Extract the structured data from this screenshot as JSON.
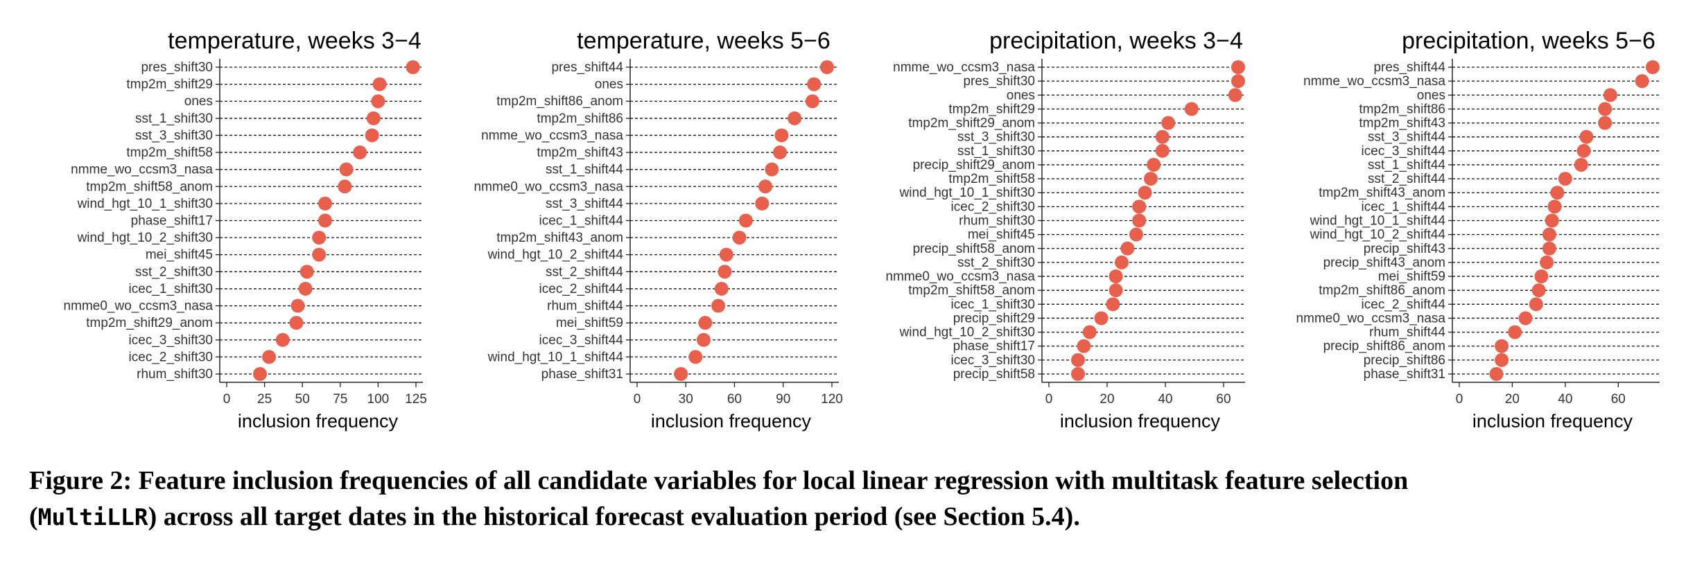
{
  "chart_data": [
    {
      "type": "dot",
      "title": "temperature, weeks 3−4",
      "xlabel": "inclusion frequency",
      "xlim": [
        0,
        125
      ],
      "xticks": [
        0,
        25,
        50,
        75,
        100,
        125
      ],
      "categories": [
        "pres_shift30",
        "tmp2m_shift29",
        "ones",
        "sst_1_shift30",
        "sst_3_shift30",
        "tmp2m_shift58",
        "nmme_wo_ccsm3_nasa",
        "tmp2m_shift58_anom",
        "wind_hgt_10_1_shift30",
        "phase_shift17",
        "wind_hgt_10_2_shift30",
        "mei_shift45",
        "sst_2_shift30",
        "icec_1_shift30",
        "nmme0_wo_ccsm3_nasa",
        "tmp2m_shift29_anom",
        "icec_3_shift30",
        "icec_2_shift30",
        "rhum_shift30"
      ],
      "values": [
        123,
        101,
        100,
        97,
        96,
        88,
        79,
        78,
        65,
        65,
        61,
        61,
        53,
        52,
        47,
        46,
        37,
        28,
        22
      ]
    },
    {
      "type": "dot",
      "title": "temperature, weeks 5−6",
      "xlabel": "inclusion frequency",
      "xlim": [
        0,
        120
      ],
      "xticks": [
        0,
        30,
        60,
        90,
        120
      ],
      "categories": [
        "pres_shift44",
        "ones",
        "tmp2m_shift86_anom",
        "tmp2m_shift86",
        "nmme_wo_ccsm3_nasa",
        "tmp2m_shift43",
        "sst_1_shift44",
        "nmme0_wo_ccsm3_nasa",
        "sst_3_shift44",
        "icec_1_shift44",
        "tmp2m_shift43_anom",
        "wind_hgt_10_2_shift44",
        "sst_2_shift44",
        "icec_2_shift44",
        "rhum_shift44",
        "mei_shift59",
        "icec_3_shift44",
        "wind_hgt_10_1_shift44",
        "phase_shift31"
      ],
      "values": [
        117,
        109,
        108,
        97,
        89,
        88,
        83,
        79,
        77,
        67,
        63,
        55,
        54,
        52,
        50,
        42,
        41,
        36,
        27
      ]
    },
    {
      "type": "dot",
      "title": "precipitation, weeks 3−4",
      "xlabel": "inclusion frequency",
      "xlim": [
        0,
        65
      ],
      "xticks": [
        0,
        20,
        40,
        60
      ],
      "categories": [
        "nmme_wo_ccsm3_nasa",
        "pres_shift30",
        "ones",
        "tmp2m_shift29",
        "tmp2m_shift29_anom",
        "sst_3_shift30",
        "sst_1_shift30",
        "precip_shift29_anom",
        "tmp2m_shift58",
        "wind_hgt_10_1_shift30",
        "icec_2_shift30",
        "rhum_shift30",
        "mei_shift45",
        "precip_shift58_anom",
        "sst_2_shift30",
        "nmme0_wo_ccsm3_nasa",
        "tmp2m_shift58_anom",
        "icec_1_shift30",
        "precip_shift29",
        "wind_hgt_10_2_shift30",
        "phase_shift17",
        "icec_3_shift30",
        "precip_shift58"
      ],
      "values": [
        65,
        65,
        64,
        49,
        41,
        39,
        39,
        36,
        35,
        33,
        31,
        31,
        30,
        27,
        25,
        23,
        23,
        22,
        18,
        14,
        12,
        10,
        10
      ]
    },
    {
      "type": "dot",
      "title": "precipitation, weeks 5−6",
      "xlabel": "inclusion frequency",
      "xlim": [
        0,
        73
      ],
      "xticks": [
        0,
        20,
        40,
        60
      ],
      "categories": [
        "pres_shift44",
        "nmme_wo_ccsm3_nasa",
        "ones",
        "tmp2m_shift86",
        "tmp2m_shift43",
        "sst_3_shift44",
        "icec_3_shift44",
        "sst_1_shift44",
        "sst_2_shift44",
        "tmp2m_shift43_anom",
        "icec_1_shift44",
        "wind_hgt_10_1_shift44",
        "wind_hgt_10_2_shift44",
        "precip_shift43",
        "precip_shift43_anom",
        "mei_shift59",
        "tmp2m_shift86_anom",
        "icec_2_shift44",
        "nmme0_wo_ccsm3_nasa",
        "rhum_shift44",
        "precip_shift86_anom",
        "precip_shift86",
        "phase_shift31"
      ],
      "values": [
        73,
        69,
        57,
        55,
        55,
        48,
        47,
        46,
        40,
        37,
        36,
        35,
        34,
        34,
        33,
        31,
        30,
        29,
        25,
        21,
        16,
        16,
        14
      ]
    }
  ],
  "colors": {
    "point": "#E8604C",
    "text": "#333333",
    "title": "#000000"
  },
  "caption": {
    "prefix": "Figure 2: Feature inclusion frequencies of all candidate variables for local linear regression with multitask feature selection",
    "paren_open": "(",
    "code": "MultiLLR",
    "suffix": ") across all target dates in the historical forecast evaluation period (see Section 5.4)."
  }
}
